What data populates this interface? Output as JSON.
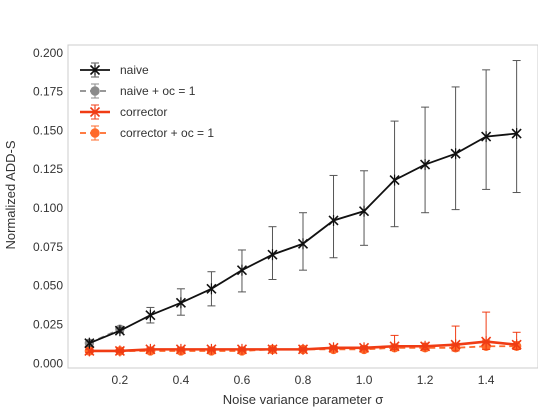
{
  "chart_data": {
    "type": "line",
    "xlabel": "Noise variance parameter σ",
    "ylabel": "Normalized ADD-S",
    "xlim": [
      0.03,
      1.57
    ],
    "ylim": [
      -0.003,
      0.205
    ],
    "x_ticks": [
      0.2,
      0.4,
      0.6,
      0.8,
      1.0,
      1.2,
      1.4
    ],
    "x_tick_labels": [
      "0.2",
      "0.4",
      "0.6",
      "0.8",
      "1.0",
      "1.2",
      "1.4"
    ],
    "y_ticks": [
      0.0,
      0.025,
      0.05,
      0.075,
      0.1,
      0.125,
      0.15,
      0.175,
      0.2
    ],
    "y_tick_labels": [
      "0.000",
      "0.025",
      "0.050",
      "0.075",
      "0.100",
      "0.125",
      "0.150",
      "0.175",
      "0.200"
    ],
    "grid": true,
    "legend_position": "top-left",
    "x": [
      0.1,
      0.2,
      0.3,
      0.4,
      0.5,
      0.6,
      0.7,
      0.8,
      0.9,
      1.0,
      1.1,
      1.2,
      1.3,
      1.4,
      1.5
    ],
    "series": [
      {
        "name": "naive",
        "color": "#111111",
        "marker": "x",
        "linestyle": "solid",
        "values": [
          0.013,
          0.021,
          0.031,
          0.039,
          0.048,
          0.06,
          0.07,
          0.077,
          0.092,
          0.098,
          0.118,
          0.128,
          0.135,
          0.146,
          0.148
        ],
        "err_low": [
          0.011,
          0.02,
          0.026,
          0.031,
          0.037,
          0.046,
          0.054,
          0.06,
          0.068,
          0.076,
          0.088,
          0.097,
          0.099,
          0.112,
          0.11
        ],
        "err_high": [
          0.015,
          0.023,
          0.036,
          0.048,
          0.059,
          0.073,
          0.088,
          0.097,
          0.121,
          0.124,
          0.156,
          0.165,
          0.178,
          0.189,
          0.195
        ]
      },
      {
        "name": "naive + oc = 1",
        "color": "#8a8a8a",
        "marker": "o",
        "linestyle": "dashed",
        "values": [
          0.013,
          0.022,
          null,
          null,
          null,
          null,
          null,
          null,
          null,
          null,
          null,
          null,
          null,
          null,
          null
        ],
        "err_low": [
          0.012,
          0.021,
          null,
          null,
          null,
          null,
          null,
          null,
          null,
          null,
          null,
          null,
          null,
          null,
          null
        ],
        "err_high": [
          0.014,
          0.023,
          null,
          null,
          null,
          null,
          null,
          null,
          null,
          null,
          null,
          null,
          null,
          null,
          null
        ]
      },
      {
        "name": "corrector",
        "color": "#f03c14",
        "marker": "x",
        "linestyle": "solid",
        "values": [
          0.008,
          0.008,
          0.009,
          0.009,
          0.009,
          0.009,
          0.009,
          0.009,
          0.01,
          0.01,
          0.011,
          0.011,
          0.012,
          0.014,
          0.012
        ],
        "err_low": [
          0.007,
          0.007,
          0.008,
          0.008,
          0.008,
          0.008,
          0.008,
          0.008,
          0.009,
          0.009,
          0.009,
          0.009,
          0.008,
          0.009,
          0.009
        ],
        "err_high": [
          0.009,
          0.009,
          0.01,
          0.01,
          0.01,
          0.01,
          0.01,
          0.01,
          0.011,
          0.011,
          0.018,
          0.013,
          0.024,
          0.033,
          0.02
        ]
      },
      {
        "name": "corrector + oc = 1",
        "color": "#ff6a2a",
        "marker": "o",
        "linestyle": "dashed",
        "values": [
          0.008,
          0.008,
          0.008,
          0.008,
          0.008,
          0.008,
          0.009,
          0.009,
          0.009,
          0.009,
          0.01,
          0.01,
          0.01,
          0.011,
          0.011
        ],
        "err_low": [
          0.007,
          0.007,
          0.007,
          0.007,
          0.007,
          0.007,
          0.008,
          0.008,
          0.008,
          0.008,
          0.009,
          0.009,
          0.009,
          0.009,
          0.009
        ],
        "err_high": [
          0.009,
          0.009,
          0.009,
          0.009,
          0.009,
          0.009,
          0.01,
          0.01,
          0.01,
          0.01,
          0.012,
          0.011,
          0.013,
          0.015,
          0.014
        ]
      }
    ]
  }
}
